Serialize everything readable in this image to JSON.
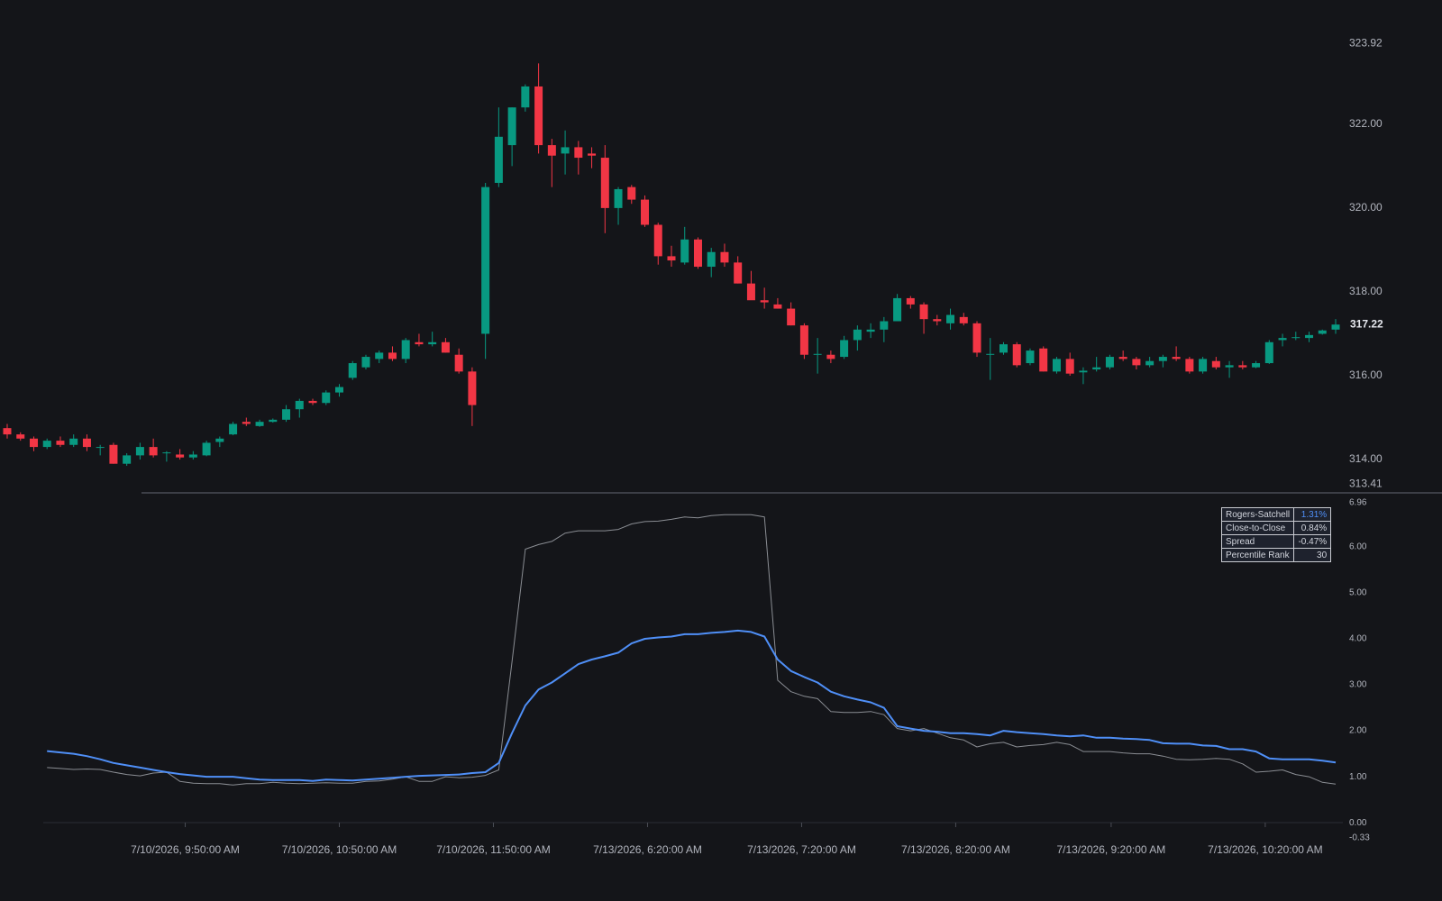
{
  "chart_data": [
    {
      "type": "candlestick",
      "up_color": "#089981",
      "down_color": "#f23645",
      "ylim": [
        313.41,
        323.92
      ],
      "yticks": [
        {
          "value": 314,
          "label": "314.00"
        },
        {
          "value": 316,
          "label": "316.00"
        },
        {
          "value": 318,
          "label": "318.00"
        },
        {
          "value": 320,
          "label": "320.00"
        },
        {
          "value": 322,
          "label": "322.00"
        }
      ],
      "candles": [
        [
          314.75,
          314.85,
          314.5,
          314.6
        ],
        [
          314.6,
          314.65,
          314.45,
          314.5
        ],
        [
          314.5,
          314.55,
          314.2,
          314.3
        ],
        [
          314.3,
          314.5,
          314.25,
          314.45
        ],
        [
          314.45,
          314.55,
          314.3,
          314.35
        ],
        [
          314.35,
          314.6,
          314.3,
          314.5
        ],
        [
          314.5,
          314.6,
          314.2,
          314.3
        ],
        [
          314.28,
          314.35,
          314.1,
          314.3
        ],
        [
          314.35,
          314.4,
          313.9,
          313.9
        ],
        [
          313.9,
          314.15,
          313.85,
          314.1
        ],
        [
          314.1,
          314.4,
          314.0,
          314.3
        ],
        [
          314.3,
          314.5,
          314.05,
          314.1
        ],
        [
          314.15,
          314.2,
          313.95,
          314.17
        ],
        [
          314.12,
          314.25,
          314.0,
          314.05
        ],
        [
          314.05,
          314.2,
          314.0,
          314.12
        ],
        [
          314.1,
          314.45,
          314.08,
          314.4
        ],
        [
          314.42,
          314.55,
          314.3,
          314.5
        ],
        [
          314.6,
          314.9,
          314.58,
          314.85
        ],
        [
          314.9,
          315.0,
          314.8,
          314.85
        ],
        [
          314.8,
          314.95,
          314.78,
          314.9
        ],
        [
          314.9,
          314.98,
          314.88,
          314.95
        ],
        [
          314.95,
          315.3,
          314.9,
          315.2
        ],
        [
          315.2,
          315.45,
          315.0,
          315.4
        ],
        [
          315.4,
          315.45,
          315.3,
          315.35
        ],
        [
          315.35,
          315.65,
          315.3,
          315.6
        ],
        [
          315.6,
          315.8,
          315.5,
          315.73
        ],
        [
          315.95,
          316.35,
          315.9,
          316.3
        ],
        [
          316.2,
          316.5,
          316.15,
          316.45
        ],
        [
          316.4,
          316.6,
          316.3,
          316.55
        ],
        [
          316.55,
          316.7,
          316.35,
          316.4
        ],
        [
          316.4,
          316.9,
          316.3,
          316.85
        ],
        [
          316.8,
          317.0,
          316.7,
          316.75
        ],
        [
          316.75,
          317.05,
          316.7,
          316.8
        ],
        [
          316.8,
          316.9,
          316.55,
          316.55
        ],
        [
          316.5,
          316.65,
          316.05,
          316.1
        ],
        [
          316.1,
          316.2,
          314.8,
          315.3
        ],
        [
          317.0,
          320.6,
          316.4,
          320.5
        ],
        [
          320.6,
          322.4,
          320.5,
          321.7
        ],
        [
          321.5,
          322.4,
          321.0,
          322.4
        ],
        [
          322.4,
          322.95,
          322.3,
          322.9
        ],
        [
          322.9,
          323.45,
          321.3,
          321.5
        ],
        [
          321.5,
          321.65,
          320.5,
          321.25
        ],
        [
          321.3,
          321.85,
          320.8,
          321.45
        ],
        [
          321.45,
          321.6,
          320.8,
          321.2
        ],
        [
          321.3,
          321.45,
          320.95,
          321.25
        ],
        [
          321.2,
          321.5,
          319.4,
          320.0
        ],
        [
          320.0,
          320.5,
          319.6,
          320.45
        ],
        [
          320.5,
          320.55,
          320.1,
          320.2
        ],
        [
          320.2,
          320.3,
          319.55,
          319.6
        ],
        [
          319.6,
          319.65,
          318.65,
          318.85
        ],
        [
          318.85,
          319.1,
          318.6,
          318.75
        ],
        [
          318.7,
          319.55,
          318.65,
          319.25
        ],
        [
          319.25,
          319.3,
          318.55,
          318.6
        ],
        [
          318.6,
          319.05,
          318.35,
          318.95
        ],
        [
          318.95,
          319.15,
          318.6,
          318.7
        ],
        [
          318.7,
          318.85,
          318.2,
          318.2
        ],
        [
          318.2,
          318.5,
          317.85,
          317.8
        ],
        [
          317.8,
          318.1,
          317.6,
          317.75
        ],
        [
          317.7,
          317.85,
          317.6,
          317.6
        ],
        [
          317.6,
          317.75,
          317.2,
          317.2
        ],
        [
          317.2,
          317.25,
          316.4,
          316.5
        ],
        [
          316.5,
          316.9,
          316.05,
          316.52
        ],
        [
          316.5,
          316.6,
          316.3,
          316.4
        ],
        [
          316.45,
          316.95,
          316.4,
          316.85
        ],
        [
          316.85,
          317.2,
          316.6,
          317.1
        ],
        [
          317.05,
          317.25,
          316.9,
          317.1
        ],
        [
          317.1,
          317.4,
          316.8,
          317.3
        ],
        [
          317.3,
          317.95,
          317.3,
          317.85
        ],
        [
          317.85,
          317.9,
          317.6,
          317.7
        ],
        [
          317.7,
          317.75,
          317.0,
          317.35
        ],
        [
          317.35,
          317.45,
          317.2,
          317.3
        ],
        [
          317.25,
          317.6,
          317.1,
          317.45
        ],
        [
          317.4,
          317.5,
          317.2,
          317.25
        ],
        [
          317.25,
          317.3,
          316.45,
          316.55
        ],
        [
          316.5,
          316.9,
          315.9,
          316.52
        ],
        [
          316.55,
          316.8,
          316.5,
          316.75
        ],
        [
          316.75,
          316.8,
          316.2,
          316.25
        ],
        [
          316.3,
          316.65,
          316.25,
          316.6
        ],
        [
          316.65,
          316.7,
          316.1,
          316.1
        ],
        [
          316.1,
          316.45,
          316.05,
          316.4
        ],
        [
          316.4,
          316.55,
          316.0,
          316.05
        ],
        [
          316.08,
          316.2,
          315.8,
          316.12
        ],
        [
          316.15,
          316.45,
          316.1,
          316.2
        ],
        [
          316.2,
          316.5,
          316.15,
          316.45
        ],
        [
          316.45,
          316.6,
          316.35,
          316.4
        ],
        [
          316.4,
          316.45,
          316.15,
          316.25
        ],
        [
          316.25,
          316.45,
          316.2,
          316.35
        ],
        [
          316.35,
          316.5,
          316.2,
          316.45
        ],
        [
          316.45,
          316.7,
          316.35,
          316.4
        ],
        [
          316.4,
          316.45,
          316.05,
          316.1
        ],
        [
          316.1,
          316.45,
          316.05,
          316.4
        ],
        [
          316.35,
          316.45,
          316.15,
          316.2
        ],
        [
          316.2,
          316.35,
          315.95,
          316.25
        ],
        [
          316.25,
          316.35,
          316.15,
          316.2
        ],
        [
          316.2,
          316.35,
          316.18,
          316.3
        ],
        [
          316.3,
          316.85,
          316.28,
          316.8
        ],
        [
          316.85,
          317.0,
          316.7,
          316.9
        ],
        [
          316.9,
          317.05,
          316.85,
          316.92
        ],
        [
          316.9,
          317.05,
          316.8,
          316.97
        ],
        [
          317.0,
          317.1,
          316.98,
          317.08
        ],
        [
          317.1,
          317.35,
          317.0,
          317.22
        ]
      ]
    },
    {
      "type": "line",
      "ylim": [
        -0.33,
        6.96
      ],
      "yticks": [
        {
          "value": 0,
          "label": "0.00"
        },
        {
          "value": 1,
          "label": "1.00"
        },
        {
          "value": 2,
          "label": "2.00"
        },
        {
          "value": 3,
          "label": "3.00"
        },
        {
          "value": 4,
          "label": "4.00"
        },
        {
          "value": 5,
          "label": "5.00"
        },
        {
          "value": 6,
          "label": "6.00"
        }
      ],
      "xlim": [
        0,
        100
      ],
      "xticks": [
        {
          "value": 13.4,
          "label": "7/10/2026, 9:50:00 AM"
        },
        {
          "value": 25,
          "label": "7/10/2026, 10:50:00 AM"
        },
        {
          "value": 36.6,
          "label": "7/10/2026, 11:50:00 AM"
        },
        {
          "value": 48.2,
          "label": "7/13/2026, 6:20:00 AM"
        },
        {
          "value": 59.8,
          "label": "7/13/2026, 7:20:00 AM"
        },
        {
          "value": 71.4,
          "label": "7/13/2026, 8:20:00 AM"
        },
        {
          "value": 83.1,
          "label": "7/13/2026, 9:20:00 AM"
        },
        {
          "value": 94.7,
          "label": "7/13/2026, 10:20:00 AM"
        }
      ],
      "series": [
        {
          "color": "#8a8d93",
          "values": [
            null,
            null,
            null,
            1.2,
            1.18,
            1.16,
            1.17,
            1.16,
            1.1,
            1.05,
            1.02,
            1.08,
            1.1,
            0.9,
            0.86,
            0.85,
            0.85,
            0.82,
            0.85,
            0.85,
            0.88,
            0.86,
            0.85,
            0.86,
            0.87,
            0.86,
            0.86,
            0.9,
            0.91,
            0.95,
            1.0,
            0.9,
            0.9,
            1.0,
            0.98,
            0.99,
            1.03,
            1.15,
            3.5,
            5.95,
            6.05,
            6.12,
            6.3,
            6.35,
            6.35,
            6.35,
            6.38,
            6.5,
            6.55,
            6.56,
            6.6,
            6.65,
            6.63,
            6.68,
            6.7,
            6.7,
            6.7,
            6.65,
            3.1,
            2.85,
            2.75,
            2.7,
            2.42,
            2.4,
            2.4,
            2.42,
            2.35,
            2.05,
            2.0,
            2.05,
            1.95,
            1.85,
            1.8,
            1.65,
            1.72,
            1.75,
            1.65,
            1.68,
            1.7,
            1.75,
            1.7,
            1.55,
            1.55,
            1.55,
            1.52,
            1.5,
            1.5,
            1.45,
            1.38,
            1.37,
            1.38,
            1.4,
            1.38,
            1.28,
            1.1,
            1.12,
            1.15,
            1.05,
            1.0,
            0.88,
            0.84
          ]
        },
        {
          "color": "#4f8ff7",
          "values": [
            null,
            null,
            null,
            1.56,
            1.53,
            1.5,
            1.45,
            1.38,
            1.3,
            1.25,
            1.2,
            1.15,
            1.1,
            1.06,
            1.03,
            1.0,
            1.0,
            1.0,
            0.97,
            0.94,
            0.93,
            0.93,
            0.93,
            0.91,
            0.94,
            0.93,
            0.92,
            0.94,
            0.96,
            0.98,
            1.0,
            1.02,
            1.03,
            1.04,
            1.05,
            1.08,
            1.1,
            1.3,
            1.95,
            2.55,
            2.9,
            3.05,
            3.25,
            3.45,
            3.55,
            3.62,
            3.7,
            3.9,
            4.0,
            4.03,
            4.05,
            4.1,
            4.1,
            4.13,
            4.15,
            4.18,
            4.15,
            4.05,
            3.55,
            3.3,
            3.17,
            3.05,
            2.85,
            2.75,
            2.68,
            2.62,
            2.5,
            2.1,
            2.05,
            2.0,
            1.98,
            1.95,
            1.95,
            1.93,
            1.9,
            2.0,
            1.97,
            1.95,
            1.93,
            1.9,
            1.88,
            1.9,
            1.85,
            1.85,
            1.83,
            1.82,
            1.8,
            1.73,
            1.72,
            1.72,
            1.68,
            1.67,
            1.6,
            1.6,
            1.55,
            1.4,
            1.38,
            1.38,
            1.38,
            1.35,
            1.31
          ]
        }
      ]
    }
  ],
  "stats_table": {
    "rows": [
      [
        "Rogers-Satchell",
        "1.31%"
      ],
      [
        "Close-to-Close",
        "0.84%"
      ],
      [
        "Spread",
        "-0.47%"
      ],
      [
        "Percentile Rank",
        30
      ]
    ]
  }
}
